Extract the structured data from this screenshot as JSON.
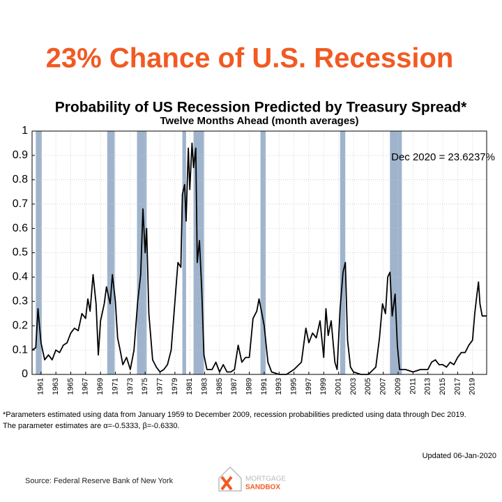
{
  "headline": "23% Chance of U.S. Recession",
  "chart_data": {
    "type": "line",
    "title": "Probability of US Recession Predicted by Treasury Spread*",
    "subtitle": "Twelve Months Ahead (month averages)",
    "annotation": "Dec 2020 = 23.6237%",
    "xlim": [
      1959.8,
      2020.9
    ],
    "ylim": [
      0,
      1
    ],
    "xticks": [
      1961,
      1963,
      1965,
      1967,
      1969,
      1971,
      1973,
      1975,
      1977,
      1979,
      1981,
      1983,
      1985,
      1987,
      1989,
      1991,
      1993,
      1995,
      1997,
      1999,
      2001,
      2003,
      2005,
      2007,
      2009,
      2011,
      2013,
      2015,
      2017,
      2019
    ],
    "yticks": [
      0,
      0.1,
      0.2,
      0.3,
      0.4,
      0.5,
      0.6,
      0.7,
      0.8,
      0.9,
      1
    ],
    "grid": true,
    "recession_color": "#9fb4cc",
    "recessions": [
      [
        1960.3,
        1961.1
      ],
      [
        1969.9,
        1970.9
      ],
      [
        1973.9,
        1975.2
      ],
      [
        1980.0,
        1980.5
      ],
      [
        1981.5,
        1982.9
      ],
      [
        1990.5,
        1991.2
      ],
      [
        2001.2,
        2001.9
      ],
      [
        2007.9,
        2009.5
      ]
    ],
    "series": [
      {
        "color": "#000000",
        "x": [
          1959.8,
          1960.3,
          1960.6,
          1961,
          1961.5,
          1962,
          1962.5,
          1963,
          1963.5,
          1964,
          1964.5,
          1965,
          1965.5,
          1966,
          1966.5,
          1967,
          1967.3,
          1967.6,
          1968,
          1968.4,
          1968.7,
          1969,
          1969.5,
          1969.8,
          1970.3,
          1970.6,
          1971,
          1971.3,
          1971.7,
          1972,
          1972.5,
          1973,
          1973.5,
          1974,
          1974.4,
          1974.7,
          1975,
          1975.2,
          1975.5,
          1976,
          1976.5,
          1977,
          1977.5,
          1978,
          1978.5,
          1979,
          1979.4,
          1979.8,
          1980,
          1980.3,
          1980.5,
          1980.8,
          1981,
          1981.3,
          1981.5,
          1981.8,
          1982,
          1982.3,
          1982.6,
          1982.9,
          1983.3,
          1984,
          1984.5,
          1985,
          1985.5,
          1986,
          1986.5,
          1987,
          1987.5,
          1988,
          1988.5,
          1989,
          1989.5,
          1990,
          1990.3,
          1990.7,
          1991,
          1991.5,
          1992,
          1993,
          1994,
          1995,
          1996,
          1996.6,
          1997,
          1997.5,
          1998,
          1998.5,
          1999,
          1999.3,
          1999.6,
          2000,
          2000.5,
          2000.8,
          2001.2,
          2001.6,
          2001.9,
          2002.2,
          2002.6,
          2003,
          2004,
          2005,
          2006,
          2006.5,
          2006.9,
          2007.3,
          2007.6,
          2007.9,
          2008.2,
          2008.6,
          2008.9,
          2009.2,
          2010,
          2011,
          2012,
          2013,
          2013.5,
          2014,
          2014.5,
          2015,
          2015.5,
          2016,
          2016.5,
          2017,
          2017.5,
          2018,
          2018.5,
          2019,
          2019.3,
          2019.6,
          2019.8,
          2020,
          2020.3,
          2020.9
        ],
        "values": [
          0.1,
          0.11,
          0.27,
          0.13,
          0.06,
          0.08,
          0.06,
          0.1,
          0.09,
          0.12,
          0.13,
          0.17,
          0.19,
          0.18,
          0.25,
          0.23,
          0.31,
          0.26,
          0.41,
          0.29,
          0.08,
          0.22,
          0.29,
          0.36,
          0.29,
          0.41,
          0.3,
          0.15,
          0.09,
          0.04,
          0.07,
          0.02,
          0.1,
          0.3,
          0.41,
          0.68,
          0.5,
          0.6,
          0.25,
          0.06,
          0.03,
          0.01,
          0.02,
          0.04,
          0.1,
          0.3,
          0.46,
          0.44,
          0.74,
          0.78,
          0.63,
          0.93,
          0.76,
          0.95,
          0.85,
          0.93,
          0.46,
          0.55,
          0.35,
          0.08,
          0.02,
          0.02,
          0.05,
          0.01,
          0.04,
          0.01,
          0.01,
          0.02,
          0.12,
          0.05,
          0.07,
          0.07,
          0.23,
          0.26,
          0.31,
          0.25,
          0.2,
          0.05,
          0.01,
          0.0,
          0.0,
          0.02,
          0.05,
          0.19,
          0.13,
          0.17,
          0.15,
          0.22,
          0.07,
          0.27,
          0.16,
          0.22,
          0.05,
          0.02,
          0.27,
          0.42,
          0.46,
          0.14,
          0.03,
          0.01,
          0.0,
          0.0,
          0.03,
          0.15,
          0.29,
          0.25,
          0.4,
          0.42,
          0.24,
          0.33,
          0.12,
          0.02,
          0.02,
          0.01,
          0.02,
          0.02,
          0.05,
          0.06,
          0.04,
          0.04,
          0.03,
          0.05,
          0.04,
          0.07,
          0.09,
          0.09,
          0.12,
          0.14,
          0.25,
          0.33,
          0.38,
          0.29,
          0.24,
          0.24
        ]
      }
    ]
  },
  "footnote": [
    "*Parameters estimated using data from January 1959 to December 2009, recession probabilities predicted using data through Dec 2019.",
    "The parameter estimates are α=-0.5333, β=-0.6330."
  ],
  "updated": "Updated 06-Jan-2020",
  "source": "Source: Federal Reserve Bank of New York",
  "logo": [
    "MORTGAGE",
    "SANDBOX"
  ]
}
